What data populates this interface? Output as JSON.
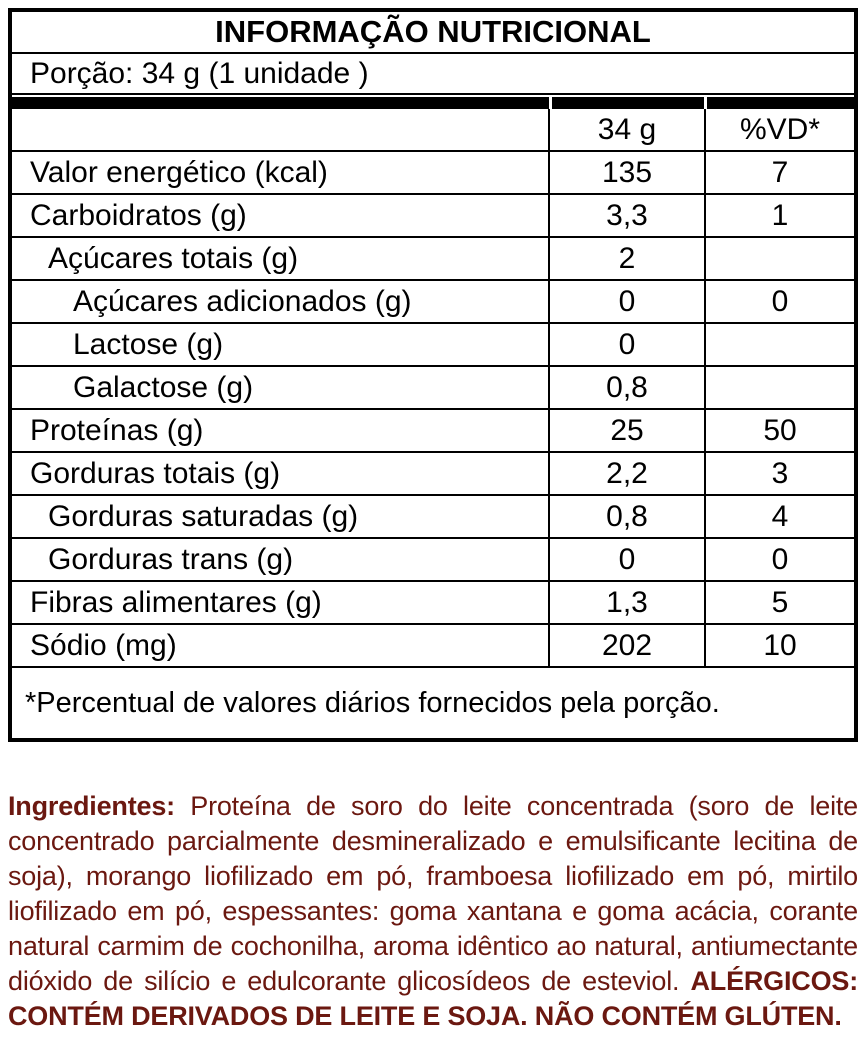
{
  "table": {
    "title": "INFORMAÇÃO NUTRICIONAL",
    "serving": "Porção: 34 g (1 unidade )",
    "header": {
      "amount_col": "34 g",
      "dv_col": "%VD*"
    },
    "rows": [
      {
        "label": "Valor energético (kcal)",
        "amount": "135",
        "vd": "7"
      },
      {
        "label": "Carboidratos (g)",
        "amount": "3,3",
        "vd": "1"
      },
      {
        "label": "Açúcares totais (g)",
        "amount": "2",
        "vd": ""
      },
      {
        "label": "Açúcares adicionados (g)",
        "amount": "0",
        "vd": "0"
      },
      {
        "label": "Lactose (g)",
        "amount": "0",
        "vd": ""
      },
      {
        "label": "Galactose (g)",
        "amount": "0,8",
        "vd": ""
      },
      {
        "label": "Proteínas (g)",
        "amount": "25",
        "vd": "50"
      },
      {
        "label": "Gorduras totais (g)",
        "amount": "2,2",
        "vd": "3"
      },
      {
        "label": "Gorduras saturadas (g)",
        "amount": "0,8",
        "vd": "4"
      },
      {
        "label": "Gorduras trans (g)",
        "amount": "0",
        "vd": "0"
      },
      {
        "label": "Fibras alimentares (g)",
        "amount": "1,3",
        "vd": "5"
      },
      {
        "label": "Sódio (mg)",
        "amount": "202",
        "vd": "10"
      }
    ],
    "footnote": "*Percentual de valores diários fornecidos pela porção."
  },
  "ingredients": {
    "label": "Ingredientes:",
    "body": " Proteína de soro do leite concentrada (soro de leite concentrado parcialmente desmineralizado e emulsificante lecitina de soja), morango liofilizado em pó, framboesa liofilizado em pó, mirtilo liofilizado em pó, espessantes: goma xantana e goma acácia, corante natural carmim de cochonilha, aroma idêntico ao natural, antiumectante dióxido de silício e edulcorante glicosídeos de esteviol. ",
    "allergens": "ALÉRGICOS: CONTÉM DERIVADOS DE LEITE E SOJA. NÃO CONTÉM GLÚTEN."
  },
  "colors": {
    "table_border": "#000000",
    "table_text": "#000000",
    "ingredients_text": "#6B1810",
    "background": "#ffffff"
  }
}
